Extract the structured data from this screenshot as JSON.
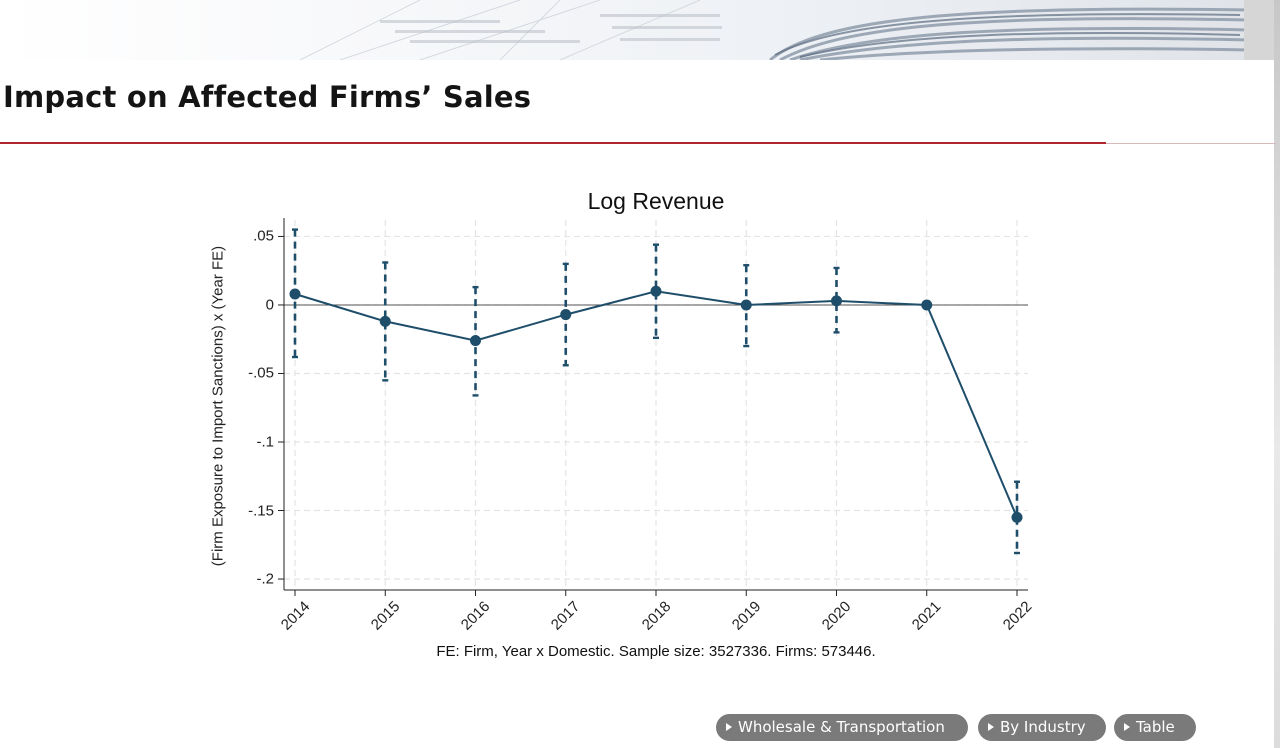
{
  "slide": {
    "title": "Impact on Affected Firms’ Sales"
  },
  "nav": {
    "items": [
      {
        "label": "Wholesale & Transportation"
      },
      {
        "label": "By Industry"
      },
      {
        "label": "Table"
      }
    ]
  },
  "colors": {
    "accent_rule": "#b0262f",
    "series": "#1f4e6b",
    "nav_button": "#7a7a7a"
  },
  "chart_data": {
    "type": "line",
    "title": "Log Revenue",
    "xlabel": "",
    "ylabel": "(Firm Exposure to Import Sanctions) x (Year FE)",
    "note": "FE: Firm, Year x Domestic. Sample size: 3527336. Firms: 573446.",
    "x": [
      "2014",
      "2015",
      "2016",
      "2017",
      "2018",
      "2019",
      "2020",
      "2021",
      "2022"
    ],
    "yticks": [
      ".05",
      "0",
      "-.05",
      "-.1",
      "-.15",
      "-.2"
    ],
    "ytick_values": [
      0.05,
      0,
      -0.05,
      -0.1,
      -0.15,
      -0.2
    ],
    "ylim": [
      -0.208,
      0.062
    ],
    "reference_line": 0,
    "grid": true,
    "series": [
      {
        "values": [
          0.008,
          -0.012,
          -0.026,
          -0.007,
          0.01,
          0.0,
          0.003,
          0.0,
          -0.155
        ],
        "ci_lower": [
          -0.038,
          -0.055,
          -0.066,
          -0.044,
          -0.024,
          -0.03,
          -0.02,
          0.0,
          -0.181
        ],
        "ci_upper": [
          0.055,
          0.031,
          0.013,
          0.03,
          0.044,
          0.029,
          0.027,
          0.0,
          -0.129
        ]
      }
    ]
  }
}
